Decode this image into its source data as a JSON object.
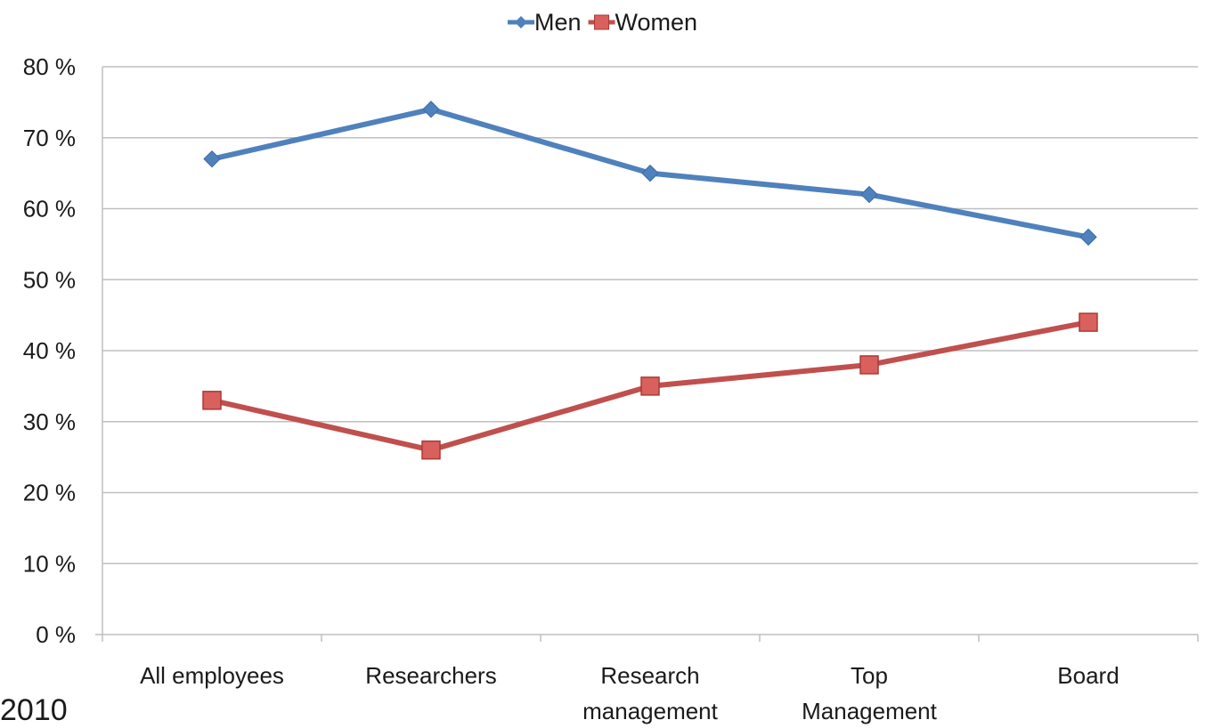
{
  "chart_data": {
    "type": "line",
    "categories": [
      [
        "All employees"
      ],
      [
        "Researchers"
      ],
      [
        "Research",
        "management"
      ],
      [
        "Top",
        "Management"
      ],
      [
        "Board"
      ]
    ],
    "series": [
      {
        "name": "Men",
        "values": [
          67,
          74,
          65,
          62,
          56
        ],
        "color": "#4F81BD",
        "marker": "diamond"
      },
      {
        "name": "Women",
        "values": [
          33,
          26,
          35,
          38,
          44
        ],
        "color": "#C0504D",
        "marker": "square"
      }
    ],
    "y_ticks": [
      "0 %",
      "10 %",
      "20 %",
      "30 %",
      "40 %",
      "50 %",
      "60 %",
      "70 %",
      "80 %"
    ],
    "ylim": [
      0,
      80
    ],
    "y_step": 10,
    "grid": true,
    "legend_position": "top"
  },
  "corner_text": "2010"
}
